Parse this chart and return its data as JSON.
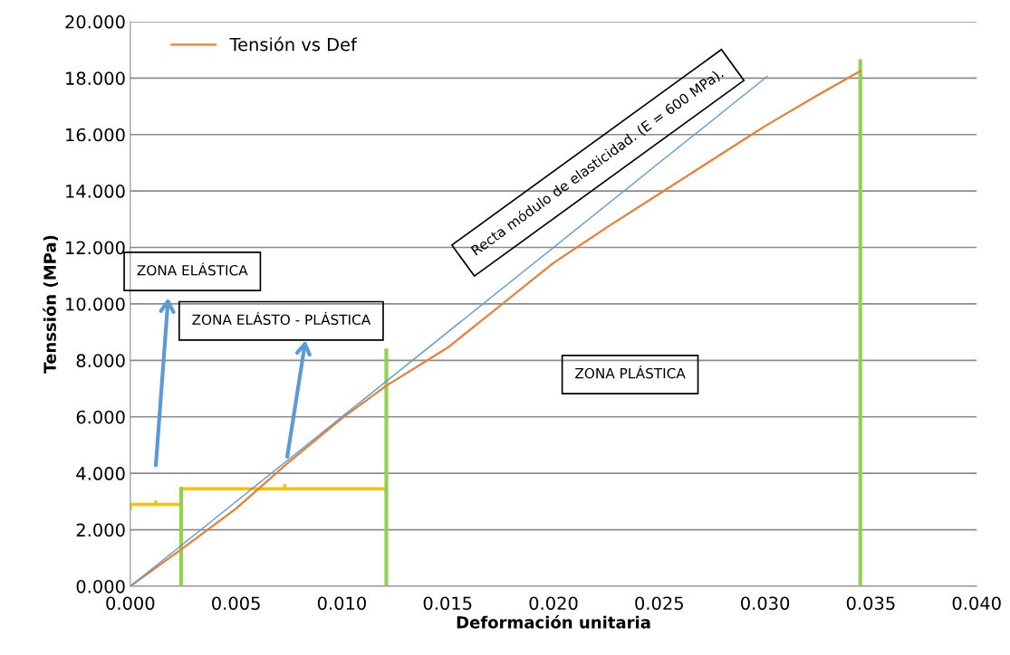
{
  "chart_data": {
    "type": "line",
    "xlabel": "Deformación unitaria",
    "ylabel": "Tenssión (MPa)",
    "xlim": [
      0,
      0.04
    ],
    "xticks": [
      {
        "value": 0,
        "label": "0.000"
      },
      {
        "value": 0.005,
        "label": "0.005"
      },
      {
        "value": 0.01,
        "label": "0.010"
      },
      {
        "value": 0.015,
        "label": "0.015"
      },
      {
        "value": 0.02,
        "label": "0.020"
      },
      {
        "value": 0.025,
        "label": "0.025"
      },
      {
        "value": 0.03,
        "label": "0.030"
      },
      {
        "value": 0.035,
        "label": "0.035"
      },
      {
        "value": 0.04,
        "label": "0.040"
      }
    ],
    "ylim": [
      0,
      20
    ],
    "yticks": [
      {
        "value": 0,
        "label": "0.000"
      },
      {
        "value": 2,
        "label": "2.000"
      },
      {
        "value": 4,
        "label": "4.000"
      },
      {
        "value": 6,
        "label": "6.000"
      },
      {
        "value": 8,
        "label": "8.000"
      },
      {
        "value": 10,
        "label": "10.000"
      },
      {
        "value": 12,
        "label": "12.000"
      },
      {
        "value": 14,
        "label": "14.000"
      },
      {
        "value": 16,
        "label": "16.000"
      },
      {
        "value": 18,
        "label": "18.000"
      },
      {
        "value": 20,
        "label": "20.000"
      }
    ],
    "grid": "y",
    "legend": "top left",
    "marker": "none",
    "series": [
      {
        "name": "Tensión vs Def",
        "color": "#ed7d31",
        "x": [
          0,
          0.0024,
          0.005,
          0.0075,
          0.01,
          0.0121,
          0.015,
          0.0175,
          0.02,
          0.0225,
          0.025,
          0.0275,
          0.03,
          0.0325,
          0.0345
        ],
        "values": [
          0,
          1.3,
          2.75,
          4.4,
          5.95,
          7.1,
          8.45,
          9.95,
          11.45,
          12.7,
          13.9,
          15.1,
          16.3,
          17.4,
          18.25
        ]
      },
      {
        "color": "#5b9bd5",
        "x": [
          0,
          0.0301
        ],
        "values": [
          0,
          18.06
        ]
      },
      {
        "color": "#ffc000",
        "x": [
          0,
          0,
          0.0012,
          0.0012,
          0.0012,
          0.0024,
          0.0024
        ],
        "values": [
          2.75,
          2.9,
          2.9,
          3.0,
          2.9,
          2.9,
          2.75
        ]
      },
      {
        "color": "#ffc000",
        "x": [
          0.0024,
          0.0024,
          0.0073,
          0.0073,
          0.0073,
          0.0121,
          0.0121
        ],
        "values": [
          3.3,
          3.45,
          3.45,
          3.57,
          3.45,
          3.45,
          3.3
        ]
      },
      {
        "color": "#92d050",
        "x": [
          0.0024,
          0.0024
        ],
        "values": [
          0,
          3.45
        ]
      },
      {
        "color": "#92d050",
        "x": [
          0.0121,
          0.0121
        ],
        "values": [
          0,
          8.35
        ]
      },
      {
        "color": "#92d050",
        "x": [
          0.0345,
          0.0345
        ],
        "values": [
          0,
          18.6
        ]
      }
    ],
    "annotations": [
      "ZONA ELÁSTICA",
      "ZONA ELÁSTO - PLÁSTICA",
      "ZONA PLÁSTICA",
      "Recta módulo de elasticidad. (E = 600 MPa)."
    ]
  }
}
